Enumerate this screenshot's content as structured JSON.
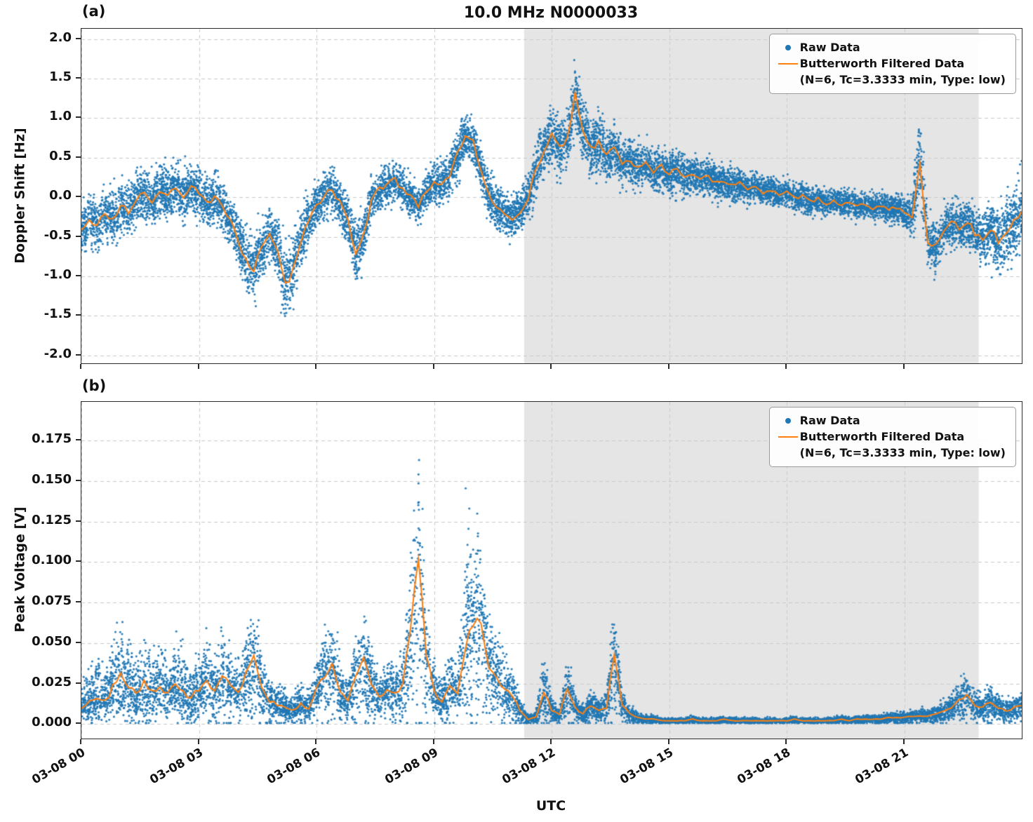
{
  "figure": {
    "title": "10.0 MHz N0000033",
    "xlabel": "UTC",
    "panels": [
      {
        "label": "(a)",
        "ylabel": "Doppler Shift [Hz]"
      },
      {
        "label": "(b)",
        "ylabel": "Peak Voltage [V]"
      }
    ],
    "legend": {
      "raw_label": "Raw Data",
      "filtered_label": "Butterworth Filtered Data",
      "filtered_sublabel": "(N=6, Tc=3.3333 min, Type: low)"
    },
    "colors": {
      "raw": "#1f77b4",
      "filtered": "#ff7f0e",
      "shade": "#e5e5e5",
      "grid": "#c9c9c9",
      "axis": "#2b2b2b"
    }
  },
  "chart_data": [
    {
      "type": "scatter",
      "panel_label": "(a)",
      "title": "10.0 MHz N0000033",
      "ylabel": "Doppler Shift [Hz]",
      "xlabel": "UTC",
      "xlim": [
        0,
        24
      ],
      "ylim": [
        -2.1,
        2.13
      ],
      "x_tick_hours": [
        0,
        3,
        6,
        9,
        12,
        15,
        18,
        21
      ],
      "x_tick_labels": [
        "03-08 00",
        "03-08 03",
        "03-08 06",
        "03-08 09",
        "03-08 12",
        "03-08 15",
        "03-08 18",
        "03-08 21"
      ],
      "y_tick_values": [
        2.0,
        1.5,
        1.0,
        0.5,
        0.0,
        -0.5,
        -1.0,
        -1.5,
        -2.0
      ],
      "y_tick_labels": [
        "2.0",
        "1.5",
        "1.0",
        "0.5",
        "0.0",
        "-0.5",
        "-1.0",
        "-1.5",
        "-2.0"
      ],
      "shaded_region_hours": [
        11.3,
        22.9
      ],
      "x_start": 0,
      "x_step": 0.2,
      "scatter_mode": "symmetric",
      "scatter_points": 12000,
      "series": [
        {
          "name": "Raw Data",
          "plot": "scatter",
          "color": "#1f77b4"
        },
        {
          "name": "Butterworth Filtered Data (N=6, Tc=3.3333 min, Type: low)",
          "plot": "line",
          "color": "#ff7f0e",
          "values": [
            -0.45,
            -0.3,
            -0.35,
            -0.22,
            -0.28,
            -0.12,
            -0.18,
            -0.02,
            0.05,
            -0.08,
            0.1,
            0.03,
            0.15,
            0.02,
            0.12,
            0.05,
            -0.08,
            0.02,
            -0.15,
            -0.3,
            -0.55,
            -0.8,
            -0.92,
            -0.65,
            -0.45,
            -0.62,
            -1.1,
            -0.95,
            -0.55,
            -0.3,
            -0.1,
            0.02,
            0.12,
            -0.08,
            -0.3,
            -0.72,
            -0.5,
            -0.02,
            0.1,
            0.16,
            0.22,
            0.1,
            0.0,
            -0.1,
            0.08,
            0.2,
            0.14,
            0.28,
            0.55,
            0.78,
            0.7,
            0.35,
            0.02,
            -0.15,
            -0.22,
            -0.26,
            -0.18,
            0.0,
            0.35,
            0.6,
            0.78,
            0.62,
            0.72,
            1.28,
            0.85,
            0.6,
            0.72,
            0.52,
            0.62,
            0.42,
            0.48,
            0.36,
            0.42,
            0.32,
            0.38,
            0.3,
            0.34,
            0.26,
            0.3,
            0.22,
            0.26,
            0.18,
            0.22,
            0.14,
            0.18,
            0.1,
            0.14,
            0.06,
            0.1,
            0.02,
            0.06,
            -0.02,
            0.02,
            -0.06,
            -0.02,
            -0.08,
            -0.04,
            -0.1,
            -0.06,
            -0.12,
            -0.08,
            -0.14,
            -0.1,
            -0.16,
            -0.12,
            -0.2,
            -0.25,
            0.45,
            -0.55,
            -0.62,
            -0.45,
            -0.32,
            -0.38,
            -0.3,
            -0.45,
            -0.52,
            -0.4,
            -0.55,
            -0.45,
            -0.32,
            -0.18
          ]
        }
      ],
      "raw_spread": [
        0.28,
        0.28,
        0.28,
        0.28,
        0.28,
        0.28,
        0.28,
        0.28,
        0.28,
        0.28,
        0.28,
        0.28,
        0.28,
        0.28,
        0.28,
        0.28,
        0.28,
        0.28,
        0.28,
        0.3,
        0.32,
        0.34,
        0.36,
        0.32,
        0.3,
        0.34,
        0.38,
        0.36,
        0.3,
        0.28,
        0.24,
        0.24,
        0.24,
        0.26,
        0.3,
        0.36,
        0.3,
        0.24,
        0.22,
        0.22,
        0.22,
        0.22,
        0.22,
        0.22,
        0.22,
        0.24,
        0.24,
        0.24,
        0.26,
        0.26,
        0.26,
        0.24,
        0.24,
        0.24,
        0.24,
        0.22,
        0.22,
        0.24,
        0.28,
        0.3,
        0.32,
        0.32,
        0.34,
        0.36,
        0.34,
        0.32,
        0.32,
        0.3,
        0.3,
        0.28,
        0.26,
        0.26,
        0.24,
        0.24,
        0.24,
        0.22,
        0.22,
        0.22,
        0.2,
        0.2,
        0.2,
        0.2,
        0.18,
        0.18,
        0.18,
        0.18,
        0.16,
        0.16,
        0.16,
        0.16,
        0.16,
        0.16,
        0.15,
        0.15,
        0.15,
        0.15,
        0.14,
        0.14,
        0.14,
        0.14,
        0.14,
        0.14,
        0.14,
        0.15,
        0.16,
        0.18,
        0.22,
        0.55,
        0.3,
        0.26,
        0.26,
        0.26,
        0.26,
        0.26,
        0.28,
        0.3,
        0.3,
        0.34,
        0.36,
        0.38,
        0.42
      ]
    },
    {
      "type": "scatter",
      "panel_label": "(b)",
      "title": "",
      "ylabel": "Peak Voltage [V]",
      "xlabel": "UTC",
      "xlim": [
        0,
        24
      ],
      "ylim": [
        -0.009,
        0.199
      ],
      "x_tick_hours": [
        0,
        3,
        6,
        9,
        12,
        15,
        18,
        21
      ],
      "x_tick_labels": [
        "03-08 00",
        "03-08 03",
        "03-08 06",
        "03-08 09",
        "03-08 12",
        "03-08 15",
        "03-08 18",
        "03-08 21"
      ],
      "y_tick_values": [
        0.175,
        0.15,
        0.125,
        0.1,
        0.075,
        0.05,
        0.025,
        0.0
      ],
      "y_tick_labels": [
        "0.175",
        "0.150",
        "0.125",
        "0.100",
        "0.075",
        "0.050",
        "0.025",
        "0.000"
      ],
      "shaded_region_hours": [
        11.3,
        22.9
      ],
      "x_start": 0,
      "x_step": 0.2,
      "scatter_mode": "positive",
      "scatter_points": 10000,
      "series": [
        {
          "name": "Raw Data",
          "plot": "scatter",
          "color": "#1f77b4"
        },
        {
          "name": "Butterworth Filtered Data (N=6, Tc=3.3333 min, Type: low)",
          "plot": "line",
          "color": "#ff7f0e",
          "values": [
            0.01,
            0.013,
            0.016,
            0.014,
            0.022,
            0.03,
            0.024,
            0.018,
            0.026,
            0.02,
            0.024,
            0.018,
            0.026,
            0.02,
            0.016,
            0.022,
            0.028,
            0.02,
            0.03,
            0.024,
            0.018,
            0.032,
            0.04,
            0.022,
            0.014,
            0.012,
            0.01,
            0.008,
            0.012,
            0.01,
            0.022,
            0.03,
            0.038,
            0.02,
            0.014,
            0.03,
            0.04,
            0.024,
            0.016,
            0.022,
            0.018,
            0.024,
            0.06,
            0.1,
            0.045,
            0.02,
            0.014,
            0.024,
            0.018,
            0.05,
            0.062,
            0.065,
            0.035,
            0.028,
            0.022,
            0.018,
            0.008,
            0.003,
            0.004,
            0.02,
            0.008,
            0.006,
            0.022,
            0.01,
            0.006,
            0.012,
            0.008,
            0.01,
            0.045,
            0.012,
            0.006,
            0.004,
            0.003,
            0.003,
            0.002,
            0.002,
            0.002,
            0.002,
            0.003,
            0.002,
            0.002,
            0.002,
            0.003,
            0.002,
            0.002,
            0.002,
            0.002,
            0.002,
            0.002,
            0.002,
            0.002,
            0.003,
            0.002,
            0.002,
            0.002,
            0.002,
            0.002,
            0.003,
            0.002,
            0.003,
            0.003,
            0.003,
            0.003,
            0.004,
            0.004,
            0.004,
            0.005,
            0.005,
            0.005,
            0.006,
            0.008,
            0.01,
            0.015,
            0.018,
            0.012,
            0.01,
            0.014,
            0.01,
            0.008,
            0.01,
            0.012
          ]
        }
      ],
      "raw_spread": [
        0.01,
        0.012,
        0.015,
        0.012,
        0.016,
        0.02,
        0.016,
        0.012,
        0.018,
        0.014,
        0.014,
        0.01,
        0.016,
        0.012,
        0.01,
        0.012,
        0.016,
        0.01,
        0.018,
        0.014,
        0.01,
        0.015,
        0.017,
        0.012,
        0.008,
        0.007,
        0.006,
        0.005,
        0.007,
        0.006,
        0.012,
        0.015,
        0.016,
        0.01,
        0.008,
        0.014,
        0.016,
        0.012,
        0.008,
        0.01,
        0.01,
        0.012,
        0.03,
        0.04,
        0.02,
        0.01,
        0.008,
        0.012,
        0.01,
        0.04,
        0.03,
        0.03,
        0.018,
        0.015,
        0.012,
        0.008,
        0.004,
        0.0015,
        0.002,
        0.015,
        0.004,
        0.003,
        0.012,
        0.005,
        0.003,
        0.006,
        0.004,
        0.005,
        0.02,
        0.005,
        0.003,
        0.002,
        0.0015,
        0.0015,
        0.001,
        0.001,
        0.001,
        0.001,
        0.0015,
        0.001,
        0.001,
        0.001,
        0.001,
        0.001,
        0.001,
        0.001,
        0.001,
        0.001,
        0.001,
        0.001,
        0.001,
        0.001,
        0.001,
        0.001,
        0.001,
        0.001,
        0.001,
        0.0012,
        0.0012,
        0.0012,
        0.0015,
        0.0015,
        0.0015,
        0.002,
        0.002,
        0.002,
        0.0025,
        0.0025,
        0.0025,
        0.003,
        0.004,
        0.005,
        0.006,
        0.007,
        0.005,
        0.005,
        0.006,
        0.005,
        0.004,
        0.005,
        0.005
      ]
    }
  ]
}
